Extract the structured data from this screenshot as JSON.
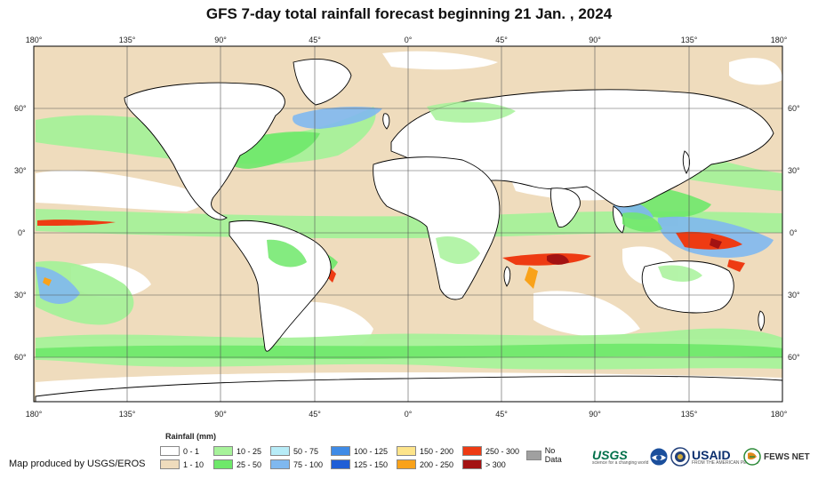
{
  "title": "GFS 7-day total rainfall forecast beginning 21 Jan. , 2024",
  "top_lon_labels": [
    "180°",
    "135°",
    "90°",
    "45°",
    "0°",
    "45°",
    "90°",
    "135°",
    "180°"
  ],
  "bottom_lon_labels": [
    "180°",
    "135°",
    "90°",
    "45°",
    "0°",
    "45°",
    "90°",
    "135°",
    "180°"
  ],
  "left_lat_labels": [
    "60°",
    "30°",
    "0°",
    "30°",
    "60°"
  ],
  "right_lat_labels": [
    "60°",
    "30°",
    "0°",
    "30°",
    "60°"
  ],
  "legend": {
    "title": "Rainfall (mm)",
    "items": [
      {
        "label": "0 - 1",
        "color": "#ffffff"
      },
      {
        "label": "1 - 10",
        "color": "#efdcbd"
      },
      {
        "label": "10 - 25",
        "color": "#a7f29a"
      },
      {
        "label": "25 - 50",
        "color": "#6ee86a"
      },
      {
        "label": "50 - 75",
        "color": "#b7ecf7"
      },
      {
        "label": "75 - 100",
        "color": "#7fb8ef"
      },
      {
        "label": "100 - 125",
        "color": "#3f8be6"
      },
      {
        "label": "125 - 150",
        "color": "#1f5ed6"
      },
      {
        "label": "150 - 200",
        "color": "#fde48a"
      },
      {
        "label": "200 - 250",
        "color": "#f9a21a"
      },
      {
        "label": "250 - 300",
        "color": "#ee3b13"
      },
      {
        "label": "> 300",
        "color": "#a31212"
      },
      {
        "label": "No Data",
        "color": "#a0a0a0"
      }
    ]
  },
  "credit": "Map produced by USGS/EROS",
  "logos": {
    "usgs": "USGS",
    "usgs_tagline": "science for a changing world",
    "usaid": "USAID",
    "usaid_tagline": "FROM THE AMERICAN PEOPLE",
    "fews": "FEWS NET"
  },
  "colors": {
    "ocean_base": "#efdcbd",
    "green_light": "#a7f29a",
    "green_mid": "#6ee86a",
    "blue_light": "#b7ecf7",
    "blue_mid": "#3f8be6",
    "red_dark": "#a31212",
    "red": "#ee3b13",
    "orange": "#f9a21a"
  }
}
